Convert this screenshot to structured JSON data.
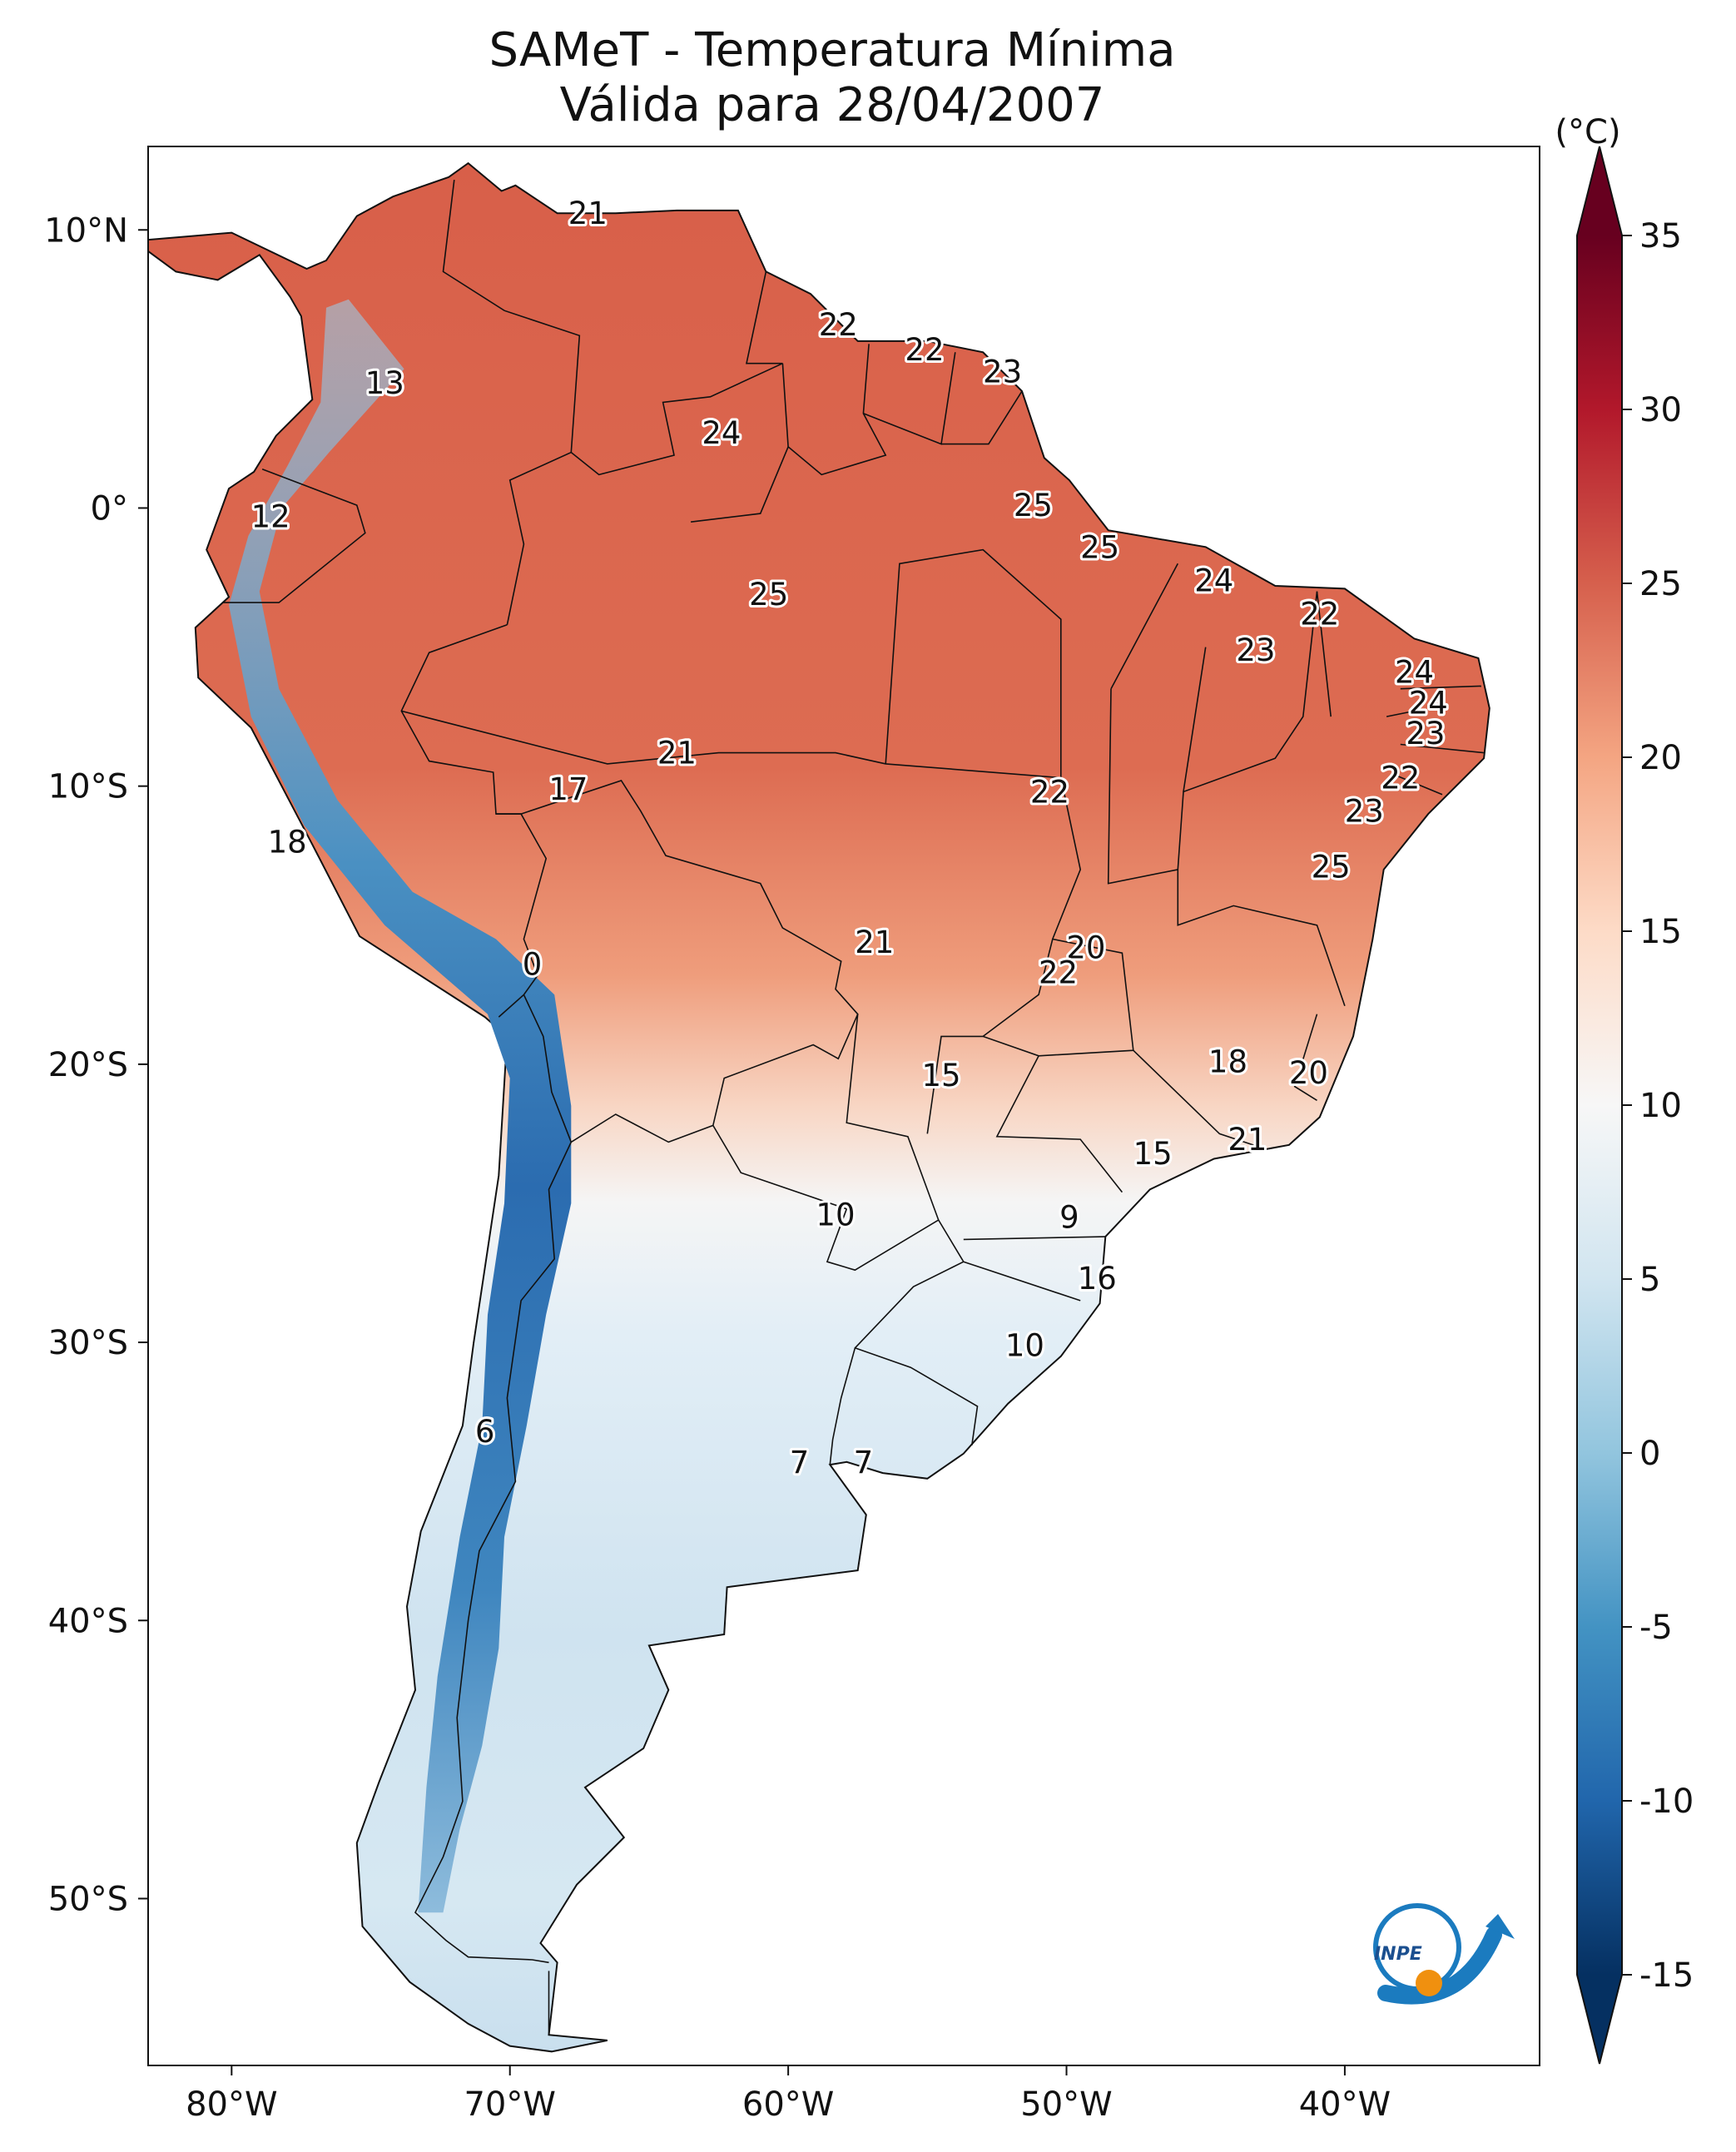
{
  "title": {
    "line1": "SAMeT - Temperatura Mínima",
    "line2": "Válida para 28/04/2007"
  },
  "unit": "(°C)",
  "axes": {
    "lon_ticks": [
      {
        "value": -80,
        "label": "80°W"
      },
      {
        "value": -70,
        "label": "70°W"
      },
      {
        "value": -60,
        "label": "60°W"
      },
      {
        "value": -50,
        "label": "50°W"
      },
      {
        "value": -40,
        "label": "40°W"
      }
    ],
    "lat_ticks": [
      {
        "value": 10,
        "label": "10°N"
      },
      {
        "value": 0,
        "label": "0°"
      },
      {
        "value": -10,
        "label": "10°S"
      },
      {
        "value": -20,
        "label": "20°S"
      },
      {
        "value": -30,
        "label": "30°S"
      },
      {
        "value": -40,
        "label": "40°S"
      },
      {
        "value": -50,
        "label": "50°S"
      }
    ],
    "lon_range": [
      -83,
      -33
    ],
    "lat_range": [
      -56,
      13
    ]
  },
  "colorbar": {
    "colormap": "RdBu_r",
    "range": [
      -15,
      35
    ],
    "extend": "both",
    "ticks": [
      {
        "value": 35,
        "label": "35"
      },
      {
        "value": 30,
        "label": "30"
      },
      {
        "value": 25,
        "label": "25"
      },
      {
        "value": 20,
        "label": "20"
      },
      {
        "value": 15,
        "label": "15"
      },
      {
        "value": 10,
        "label": "10"
      },
      {
        "value": 5,
        "label": "5"
      },
      {
        "value": 0,
        "label": "0"
      },
      {
        "value": -5,
        "label": "-5"
      },
      {
        "value": -10,
        "label": "-10"
      },
      {
        "value": -15,
        "label": "-15"
      }
    ]
  },
  "value_labels": [
    {
      "lon": -67.2,
      "lat": 10.6,
      "text": "21"
    },
    {
      "lon": -58.2,
      "lat": 6.6,
      "text": "22"
    },
    {
      "lon": -55.1,
      "lat": 5.7,
      "text": "22"
    },
    {
      "lon": -52.3,
      "lat": 4.9,
      "text": "23"
    },
    {
      "lon": -74.5,
      "lat": 4.5,
      "text": "13"
    },
    {
      "lon": -62.4,
      "lat": 2.7,
      "text": "24"
    },
    {
      "lon": -51.2,
      "lat": 0.1,
      "text": "25"
    },
    {
      "lon": -78.6,
      "lat": -0.3,
      "text": "12"
    },
    {
      "lon": -48.8,
      "lat": -1.4,
      "text": "25"
    },
    {
      "lon": -44.7,
      "lat": -2.6,
      "text": "24"
    },
    {
      "lon": -60.7,
      "lat": -3.1,
      "text": "25"
    },
    {
      "lon": -40.9,
      "lat": -3.8,
      "text": "22"
    },
    {
      "lon": -43.2,
      "lat": -5.1,
      "text": "23"
    },
    {
      "lon": -37.5,
      "lat": -5.9,
      "text": "24"
    },
    {
      "lon": -37.0,
      "lat": -7.0,
      "text": "24"
    },
    {
      "lon": -37.1,
      "lat": -8.1,
      "text": "23"
    },
    {
      "lon": -64.0,
      "lat": -8.8,
      "text": "21"
    },
    {
      "lon": -38.0,
      "lat": -9.7,
      "text": "22"
    },
    {
      "lon": -50.6,
      "lat": -10.2,
      "text": "22"
    },
    {
      "lon": -67.9,
      "lat": -10.1,
      "text": "17"
    },
    {
      "lon": -39.3,
      "lat": -10.9,
      "text": "23"
    },
    {
      "lon": -78.0,
      "lat": -12.0,
      "text": "18"
    },
    {
      "lon": -40.5,
      "lat": -12.9,
      "text": "25"
    },
    {
      "lon": -49.3,
      "lat": -15.8,
      "text": "20"
    },
    {
      "lon": -56.9,
      "lat": -15.6,
      "text": "21"
    },
    {
      "lon": -50.3,
      "lat": -16.7,
      "text": "22"
    },
    {
      "lon": -69.2,
      "lat": -16.4,
      "text": "0"
    },
    {
      "lon": -44.2,
      "lat": -19.9,
      "text": "18"
    },
    {
      "lon": -41.3,
      "lat": -20.3,
      "text": "20"
    },
    {
      "lon": -54.5,
      "lat": -20.4,
      "text": "15"
    },
    {
      "lon": -43.5,
      "lat": -22.7,
      "text": "21"
    },
    {
      "lon": -46.9,
      "lat": -23.2,
      "text": "15"
    },
    {
      "lon": -58.3,
      "lat": -25.4,
      "text": "10"
    },
    {
      "lon": -49.9,
      "lat": -25.5,
      "text": "9"
    },
    {
      "lon": -48.9,
      "lat": -27.7,
      "text": "16"
    },
    {
      "lon": -51.5,
      "lat": -30.1,
      "text": "10"
    },
    {
      "lon": -70.9,
      "lat": -33.2,
      "text": "6"
    },
    {
      "lon": -59.6,
      "lat": -34.3,
      "text": "7"
    },
    {
      "lon": -57.3,
      "lat": -34.3,
      "text": "7"
    }
  ],
  "logo": {
    "text": "INPE"
  }
}
